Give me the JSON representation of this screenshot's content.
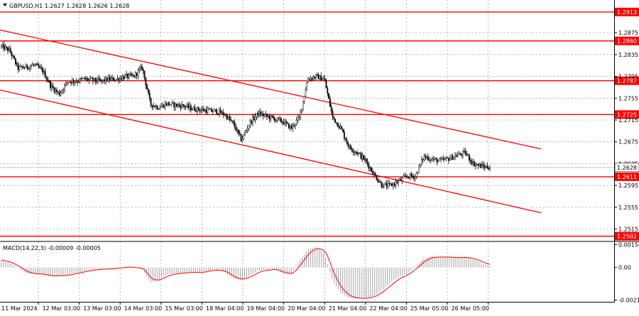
{
  "header": {
    "title": "GBPUSD,H1  1.2627 1.2628 1.2626 1.2628",
    "macd_label": "MACD(14,22,3) -0.00009 -0.00005"
  },
  "chart_data": {
    "type": "candlestick",
    "symbol": "GBPUSD",
    "timeframe": "H1",
    "ylim": [
      1.2495,
      1.2935
    ],
    "yticks": [
      "1.2875",
      "1.2835",
      "1.2795",
      "1.2755",
      "1.2715",
      "1.2675",
      "1.2635",
      "1.2595",
      "1.2555",
      "1.2515"
    ],
    "xticks": [
      "11 Mar 2024",
      "12 Mar 03:00",
      "13 Mar 03:00",
      "14 Mar 03:00",
      "15 Mar 03:00",
      "18 Mar 04:00",
      "19 Mar 04:00",
      "20 Mar 04:00",
      "21 Mar 04:00",
      "22 Mar 04:00",
      "25 Mar 05:00",
      "26 Mar 05:00"
    ],
    "levels": [
      "1.2913",
      "1.2860",
      "1.2787",
      "1.2725",
      "1.2611",
      "1.2502"
    ],
    "current_price": "1.2628",
    "channel": {
      "upper": [
        {
          "date": "11 Mar 2024",
          "price": 1.288
        },
        {
          "date": "27 Mar",
          "price": 1.2662
        }
      ],
      "lower": [
        {
          "date": "11 Mar 2024",
          "price": 1.277
        },
        {
          "date": "27 Mar",
          "price": 1.2545
        }
      ]
    },
    "price_path": [
      1.285,
      1.2842,
      1.281,
      1.2812,
      1.2816,
      1.2805,
      1.2776,
      1.2763,
      1.2786,
      1.2786,
      1.279,
      1.2788,
      1.2786,
      1.279,
      1.279,
      1.2795,
      1.2795,
      1.2812,
      1.2744,
      1.2738,
      1.2745,
      1.2742,
      1.2741,
      1.2736,
      1.2734,
      1.2732,
      1.2731,
      1.2725,
      1.2708,
      1.2678,
      1.271,
      1.2727,
      1.2722,
      1.2717,
      1.2712,
      1.27,
      1.272,
      1.279,
      1.2795,
      1.279,
      1.272,
      1.27,
      1.2665,
      1.2655,
      1.264,
      1.2615,
      1.2595,
      1.2595,
      1.2603,
      1.2612,
      1.2612,
      1.2648,
      1.2643,
      1.264,
      1.2644,
      1.265,
      1.2655,
      1.2635,
      1.263,
      1.2628
    ],
    "macd": {
      "ylim": [
        -0.00225,
        0.00165
      ],
      "yticks": [
        "0.00154",
        "0.00",
        "-0.00219"
      ],
      "histogram": [
        0.0005,
        0.0003,
        0.0,
        -0.0004,
        -0.00045,
        -0.00045,
        -0.0006,
        -0.00055,
        -0.0005,
        -0.00035,
        -0.00025,
        -0.00015,
        -0.0001,
        -0.0001,
        -5e-05,
        5e-05,
        0.0,
        -0.0001,
        -0.001,
        -0.00085,
        -0.00045,
        -0.0004,
        -0.00035,
        -0.0003,
        -0.00035,
        -0.0002,
        -0.00015,
        -0.0003,
        -0.00075,
        -0.00085,
        -0.00055,
        -0.0002,
        -0.00015,
        -0.0001,
        -0.0004,
        -0.00045,
        0.0004,
        0.0012,
        0.0014,
        0.001,
        -0.0009,
        -0.0017,
        -0.00205,
        -0.0021,
        -0.00205,
        -0.0019,
        -0.0015,
        -0.001,
        -0.0006,
        -0.0004,
        5e-05,
        0.0006,
        0.00075,
        0.0007,
        0.0007,
        0.00065,
        0.0007,
        0.00055,
        0.0003,
        0.0001
      ]
    }
  }
}
